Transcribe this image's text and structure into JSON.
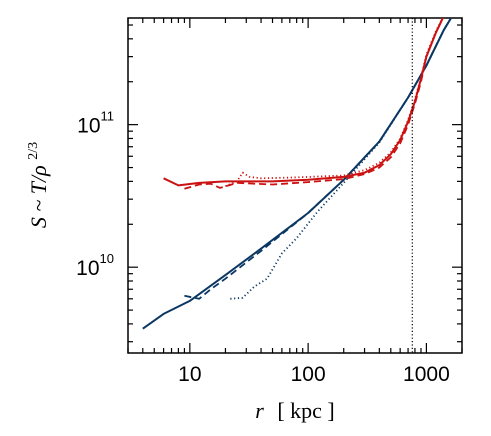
{
  "chart_data": {
    "type": "line",
    "title": "",
    "xlabel": {
      "var": "r",
      "unit": "[ kpc ]"
    },
    "ylabel": {
      "prefix": "S ~ T/ρ",
      "sup": "2/3"
    },
    "xscale": "log",
    "yscale": "log",
    "xlim": [
      3,
      2000
    ],
    "ylim": [
      2500000000.0,
      560000000000.0
    ],
    "x_ticks": [
      {
        "value": 10,
        "label": "10"
      },
      {
        "value": 100,
        "label": "100"
      },
      {
        "value": 1000,
        "label": "1000"
      }
    ],
    "y_ticks": [
      {
        "value": 10000000000.0,
        "base": "10",
        "exp": "10"
      },
      {
        "value": 100000000000.0,
        "base": "10",
        "exp": "11"
      }
    ],
    "grid": false,
    "legend": "none",
    "vline": {
      "x": 760,
      "style": "dotted",
      "color": "#000000"
    },
    "series": [
      {
        "color": "#0b3763",
        "style": "solid",
        "points": [
          [
            4,
            3700000000.0
          ],
          [
            6,
            4700000000.0
          ],
          [
            10,
            5800000000.0
          ],
          [
            20,
            8800000000.0
          ],
          [
            40,
            13500000000.0
          ],
          [
            100,
            24000000000.0
          ],
          [
            200,
            41000000000.0
          ],
          [
            400,
            76000000000.0
          ],
          [
            700,
            155000000000.0
          ],
          [
            1000,
            260000000000.0
          ],
          [
            1400,
            460000000000.0
          ],
          [
            1800,
            650000000000.0
          ]
        ]
      },
      {
        "color": "#0b3763",
        "style": "dashed",
        "points": [
          [
            9,
            6300000000.0
          ],
          [
            12,
            6000000000.0
          ],
          [
            15,
            7000000000.0
          ],
          [
            20,
            8300000000.0
          ],
          [
            40,
            13000000000.0
          ],
          [
            100,
            24000000000.0
          ],
          [
            200,
            41000000000.0
          ],
          [
            400,
            76000000000.0
          ],
          [
            700,
            155000000000.0
          ],
          [
            1000,
            260000000000.0
          ],
          [
            1400,
            460000000000.0
          ],
          [
            1800,
            650000000000.0
          ]
        ]
      },
      {
        "color": "#0b3763",
        "style": "dotted",
        "points": [
          [
            22,
            6000000000.0
          ],
          [
            28,
            6100000000.0
          ],
          [
            35,
            7300000000.0
          ],
          [
            45,
            8300000000.0
          ],
          [
            60,
            12500000000.0
          ],
          [
            80,
            16000000000.0
          ],
          [
            120,
            24500000000.0
          ],
          [
            200,
            39000000000.0
          ],
          [
            400,
            75000000000.0
          ],
          [
            700,
            155000000000.0
          ],
          [
            1000,
            260000000000.0
          ],
          [
            1400,
            460000000000.0
          ],
          [
            1800,
            650000000000.0
          ]
        ]
      },
      {
        "color": "#cc1111",
        "style": "solid",
        "points": [
          [
            6,
            42000000000.0
          ],
          [
            8,
            37500000000.0
          ],
          [
            12,
            39000000000.0
          ],
          [
            20,
            40000000000.0
          ],
          [
            50,
            40000000000.0
          ],
          [
            100,
            41000000000.0
          ],
          [
            200,
            43000000000.0
          ],
          [
            300,
            46000000000.0
          ],
          [
            400,
            52000000000.0
          ],
          [
            500,
            62000000000.0
          ],
          [
            600,
            78000000000.0
          ],
          [
            700,
            105000000000.0
          ],
          [
            800,
            145000000000.0
          ],
          [
            900,
            210000000000.0
          ],
          [
            1000,
            300000000000.0
          ],
          [
            1200,
            440000000000.0
          ],
          [
            1500,
            650000000000.0
          ]
        ]
      },
      {
        "color": "#cc1111",
        "style": "dashed",
        "points": [
          [
            9,
            35500000000.0
          ],
          [
            12,
            38000000000.0
          ],
          [
            15,
            38500000000.0
          ],
          [
            18,
            36000000000.0
          ],
          [
            25,
            39000000000.0
          ],
          [
            50,
            38000000000.0
          ],
          [
            100,
            39500000000.0
          ],
          [
            200,
            41500000000.0
          ],
          [
            300,
            45000000000.0
          ],
          [
            400,
            50000000000.0
          ],
          [
            500,
            59000000000.0
          ],
          [
            600,
            74000000000.0
          ],
          [
            700,
            100000000000.0
          ],
          [
            800,
            140000000000.0
          ],
          [
            900,
            200000000000.0
          ],
          [
            1000,
            300000000000.0
          ],
          [
            1200,
            440000000000.0
          ],
          [
            1500,
            650000000000.0
          ]
        ]
      },
      {
        "color": "#cc1111",
        "style": "dotted",
        "points": [
          [
            20,
            37000000000.0
          ],
          [
            25,
            40000000000.0
          ],
          [
            28,
            46000000000.0
          ],
          [
            32,
            43000000000.0
          ],
          [
            40,
            42000000000.0
          ],
          [
            70,
            42500000000.0
          ],
          [
            100,
            43000000000.0
          ],
          [
            200,
            44000000000.0
          ],
          [
            300,
            48000000000.0
          ],
          [
            400,
            54000000000.0
          ],
          [
            500,
            64000000000.0
          ],
          [
            600,
            80000000000.0
          ],
          [
            700,
            108000000000.0
          ],
          [
            800,
            150000000000.0
          ],
          [
            900,
            215000000000.0
          ],
          [
            1000,
            310000000000.0
          ],
          [
            1200,
            450000000000.0
          ],
          [
            1500,
            650000000000.0
          ]
        ]
      }
    ]
  }
}
